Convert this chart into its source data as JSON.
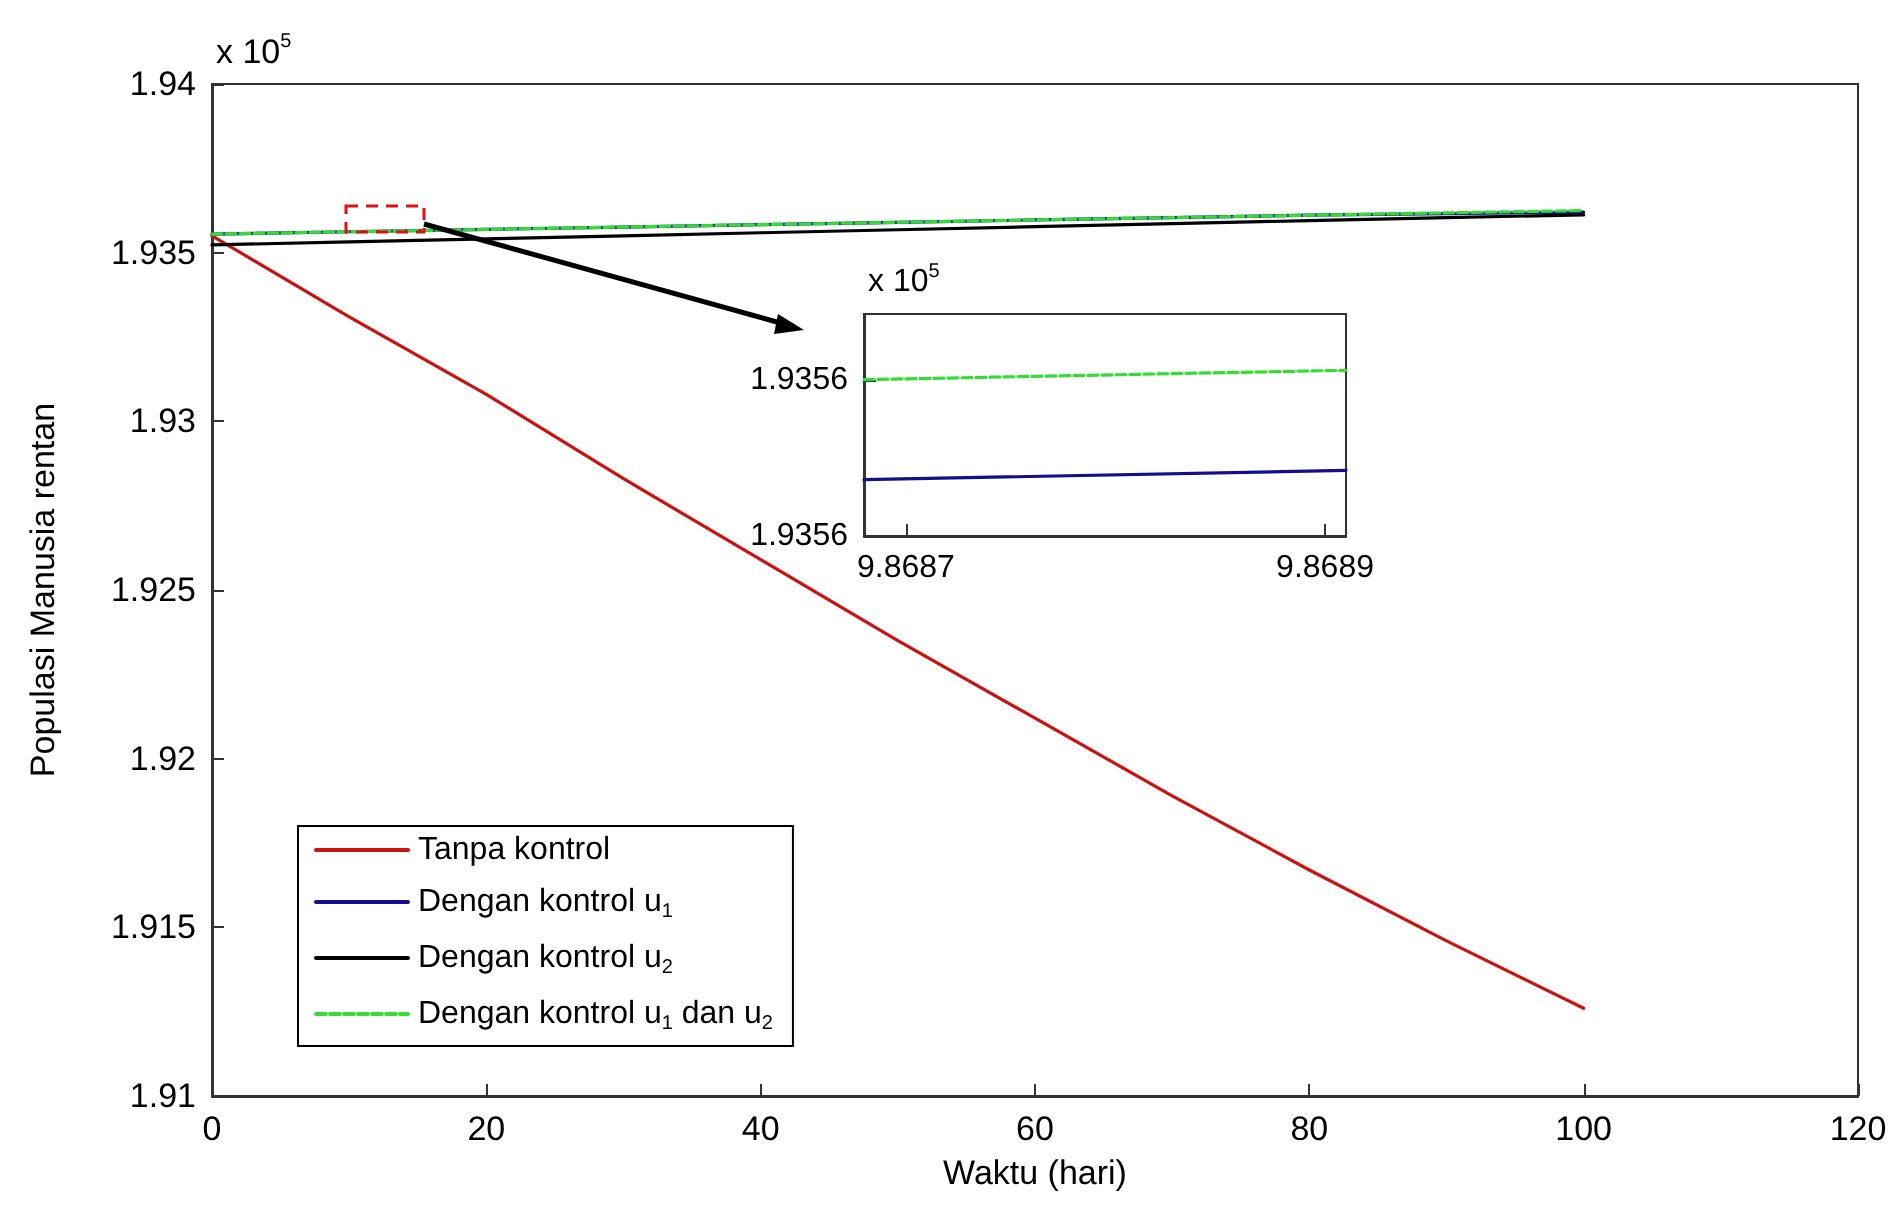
{
  "chart_data": [
    {
      "type": "line",
      "xlabel": "Waktu (hari)",
      "ylabel": "Populasi Manusia rentan",
      "annotations": [
        "x 10$^{5}$"
      ],
      "xlim": [
        0,
        120
      ],
      "xticks": [
        0,
        20,
        40,
        60,
        80,
        100,
        120
      ],
      "ylim": [
        1.91,
        1.94
      ],
      "yticks": [
        1.91,
        1.915,
        1.92,
        1.925,
        1.93,
        1.935,
        1.94
      ],
      "legend": "bottom left",
      "marker": "none",
      "x": [
        0,
        10,
        20,
        30,
        40,
        50,
        60,
        70,
        80,
        90,
        100
      ],
      "series": [
        {
          "name": "Tanpa kontrol",
          "color": "#cc1111",
          "values": [
            1.9355,
            1.9331,
            1.9308,
            1.9283,
            1.9259,
            1.9235,
            1.9212,
            1.9189,
            1.9167,
            1.9146,
            1.9126
          ]
        },
        {
          "name": "Dengan kontrol u$_{1}$",
          "color": "#10108c",
          "values": [
            1.93555,
            1.93562,
            1.93569,
            1.93576,
            1.93583,
            1.9359,
            1.93597,
            1.93604,
            1.93611,
            1.93616,
            1.9362
          ]
        },
        {
          "name": "Dengan kontrol u$_{2}$",
          "color": "#000000",
          "values": [
            1.93523,
            1.93532,
            1.93541,
            1.9355,
            1.93559,
            1.93568,
            1.93577,
            1.93586,
            1.93595,
            1.93604,
            1.93612
          ]
        },
        {
          "name": "Dengan kontrol u$_{1}$ dan u$_{2}$",
          "color": "#33dd33",
          "line_style": "dashed",
          "values": [
            1.93555,
            1.93562,
            1.93569,
            1.93576,
            1.93583,
            1.9359,
            1.93597,
            1.93604,
            1.93611,
            1.93618,
            1.93625
          ]
        }
      ]
    },
    {
      "type": "line",
      "annotations": [
        "x 10$^{5}$"
      ],
      "xlim": [
        9.86868,
        9.86891
      ],
      "xticks": [
        9.8687,
        9.8689
      ],
      "ylim": [
        1.93555,
        1.935621
      ],
      "yticks": [
        {
          "value": 1.93555,
          "label": "1.9356"
        },
        {
          "value": 1.9356,
          "label": "1.9356"
        }
      ],
      "marker": "none",
      "x": [
        9.86868,
        9.86891
      ],
      "series": [
        {
          "color": "#33dd33",
          "line_style": "dashed",
          "values": [
            1.9356,
            1.935603
          ]
        },
        {
          "color": "#10108c",
          "values": [
            1.935568,
            1.935571
          ]
        }
      ]
    }
  ]
}
